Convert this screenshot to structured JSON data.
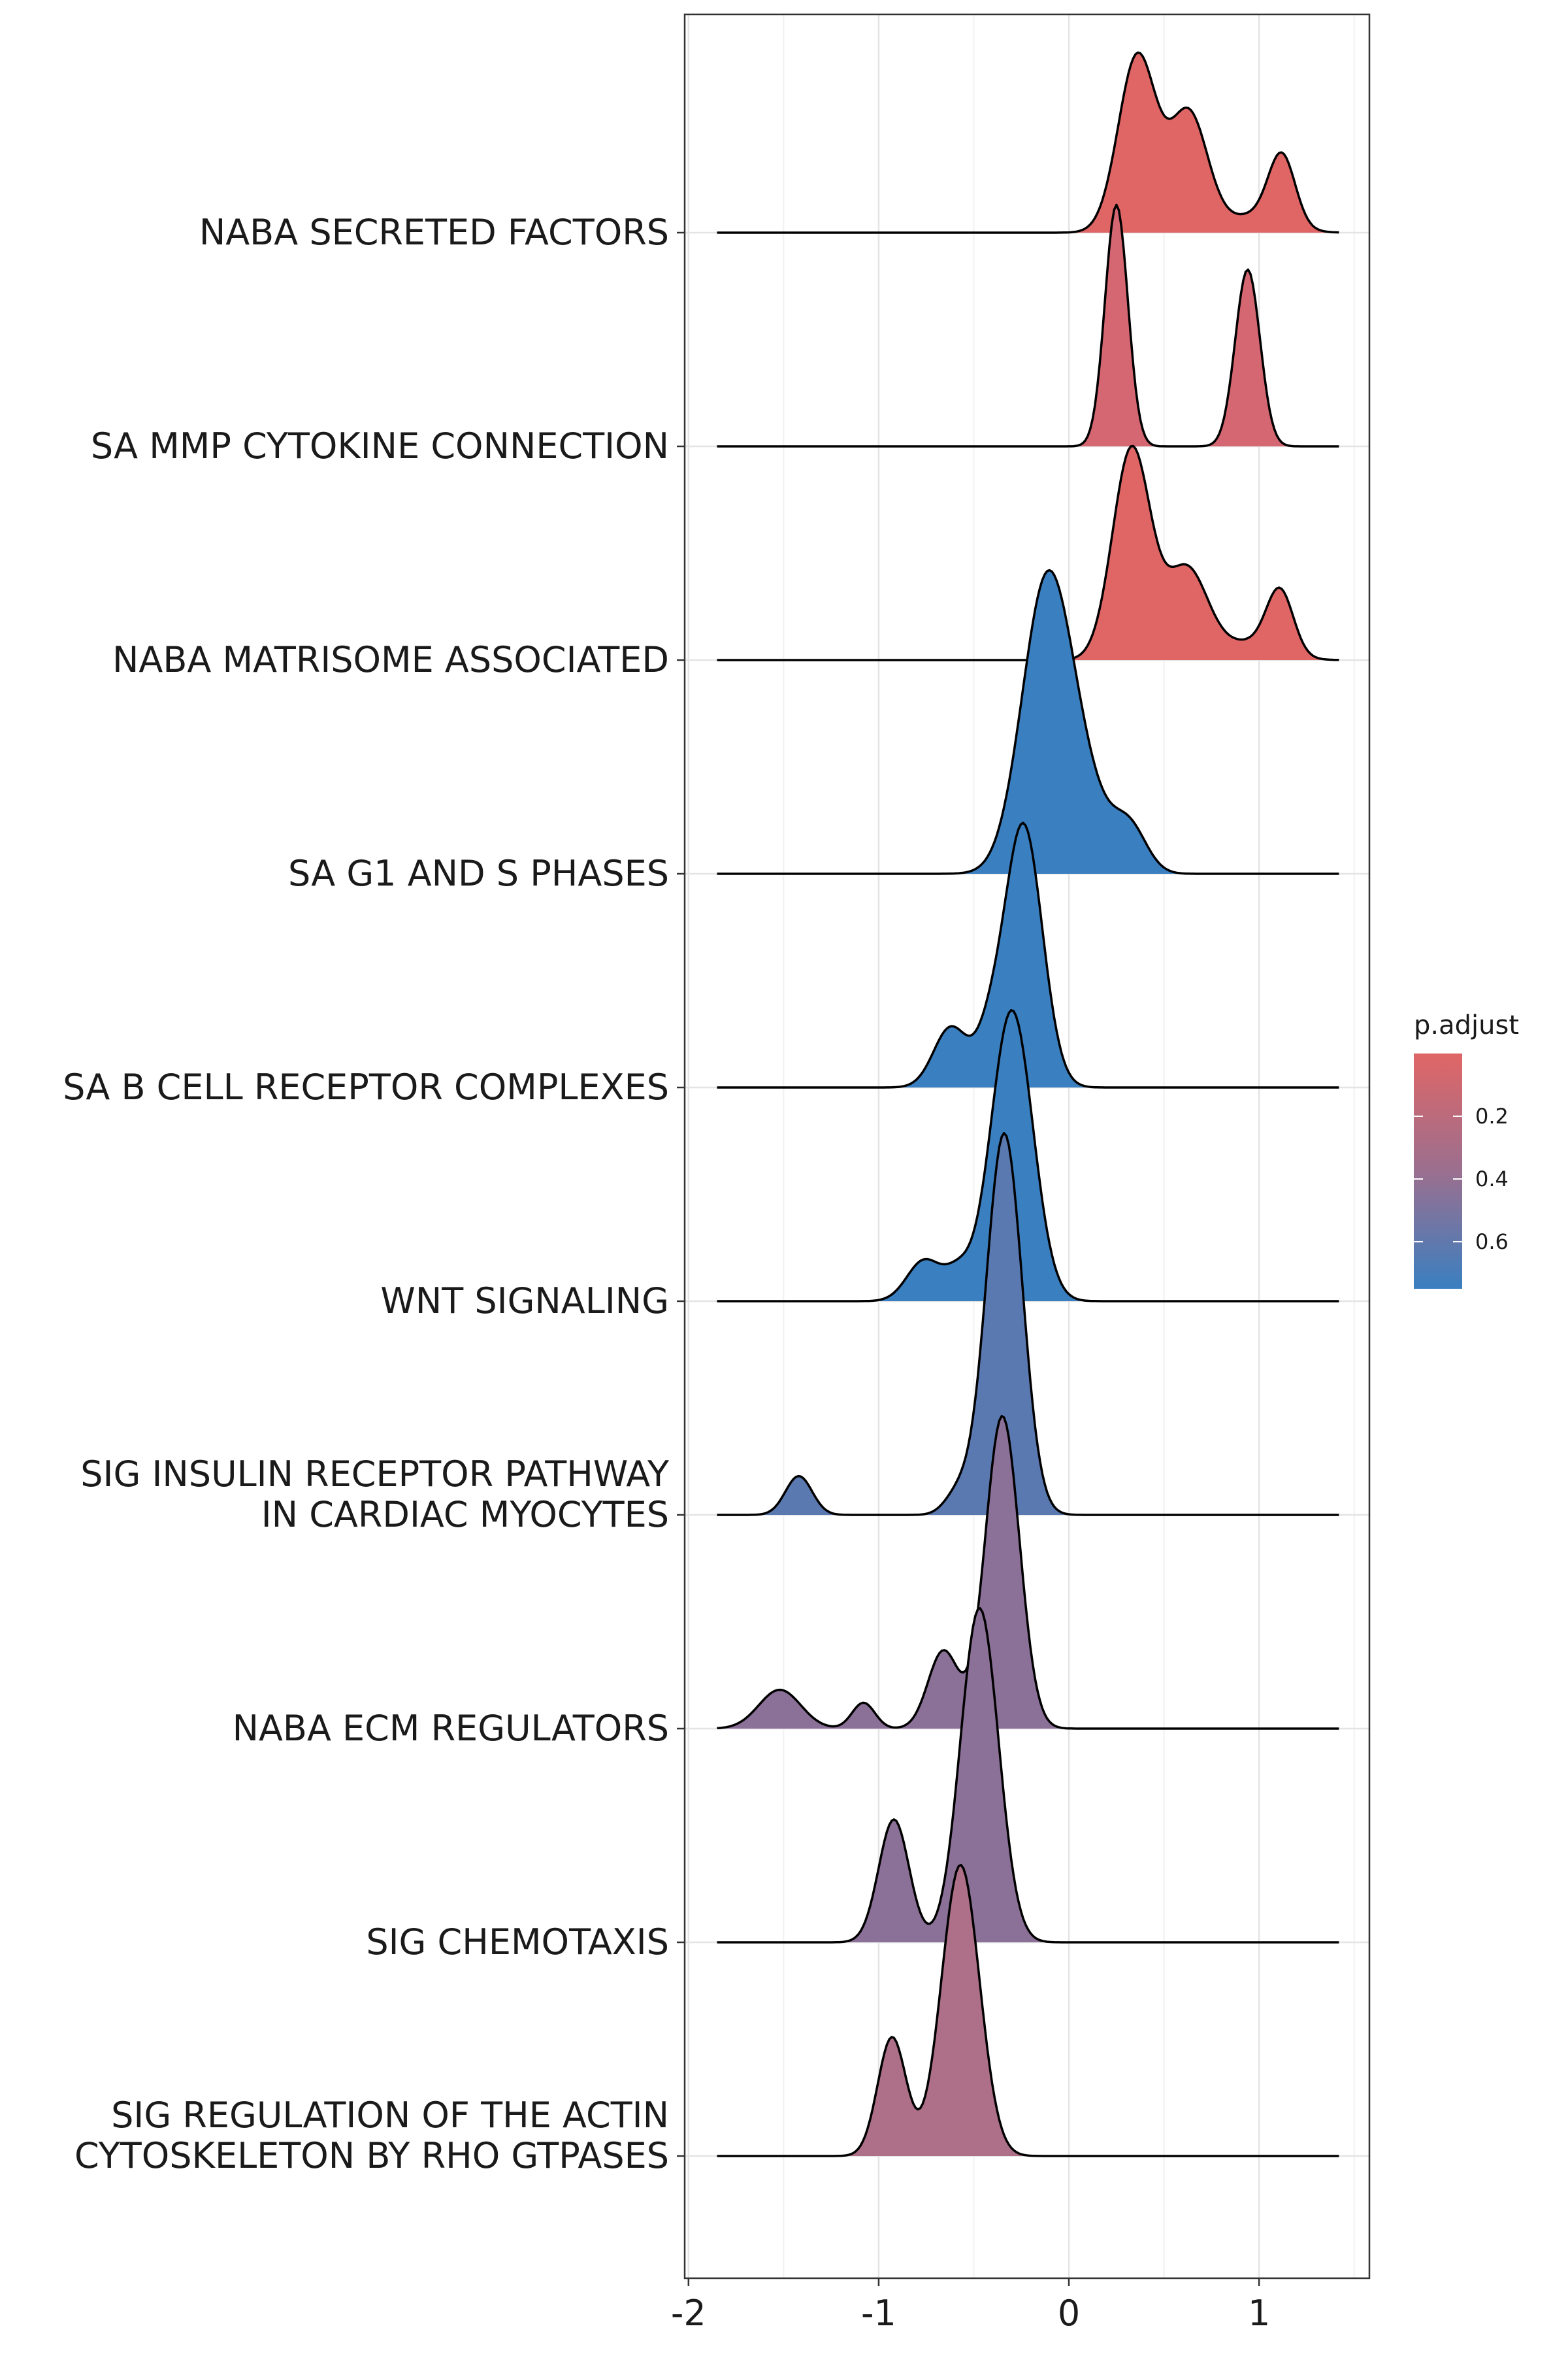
{
  "chart_data": {
    "type": "ridgeline",
    "xlim": [
      -2.02,
      1.58
    ],
    "x_ticks": [
      {
        "value": -2,
        "label": "-2"
      },
      {
        "value": -1,
        "label": "-1"
      },
      {
        "value": 0,
        "label": "0"
      },
      {
        "value": 1,
        "label": "1"
      }
    ],
    "xlabel": "",
    "ylabel": "",
    "grid": true,
    "density_range": [
      -1.85,
      1.42
    ],
    "ridge_height_per_unit": 1.0,
    "color_scale": {
      "title": "p.adjust",
      "low_value": 0.0,
      "high_value": 0.75,
      "low_color": "#e06666",
      "high_color": "#3a7fc0",
      "ticks": [
        {
          "value": 0.2,
          "label": "0.2"
        },
        {
          "value": 0.4,
          "label": "0.4"
        },
        {
          "value": 0.6,
          "label": "0.6"
        }
      ]
    },
    "series": [
      {
        "label_lines": [
          "NABA SECRETED FACTORS"
        ],
        "p_adjust": 0.03,
        "fill": "#e06666",
        "peaks": [
          [
            0.36,
            0.1,
            0.82
          ],
          [
            0.63,
            0.1,
            0.55
          ],
          [
            0.98,
            0.15,
            0.08
          ],
          [
            1.12,
            0.07,
            0.32
          ]
        ]
      },
      {
        "label_lines": [
          "SA MMP CYTOKINE CONNECTION"
        ],
        "p_adjust": 0.1,
        "fill": "#d56773",
        "peaks": [
          [
            0.25,
            0.06,
            1.12
          ],
          [
            0.94,
            0.065,
            0.82
          ]
        ]
      },
      {
        "label_lines": [
          "NABA MATRISOME ASSOCIATED"
        ],
        "p_adjust": 0.03,
        "fill": "#e06666",
        "peaks": [
          [
            0.33,
            0.1,
            0.98
          ],
          [
            0.62,
            0.11,
            0.42
          ],
          [
            0.95,
            0.15,
            0.08
          ],
          [
            1.11,
            0.07,
            0.29
          ]
        ]
      },
      {
        "label_lines": [
          "SA G1 AND S PHASES"
        ],
        "p_adjust": 0.75,
        "fill": "#3a7fc0",
        "peaks": [
          [
            -0.12,
            0.13,
            1.3
          ],
          [
            0.08,
            0.13,
            0.32
          ],
          [
            0.32,
            0.09,
            0.2
          ]
        ]
      },
      {
        "label_lines": [
          "SA B CELL RECEPTOR COMPLEXES"
        ],
        "p_adjust": 0.75,
        "fill": "#3a7fc0",
        "peaks": [
          [
            -0.24,
            0.1,
            1.22
          ],
          [
            -0.62,
            0.09,
            0.28
          ],
          [
            -0.42,
            0.07,
            0.18
          ]
        ]
      },
      {
        "label_lines": [
          "WNT SIGNALING"
        ],
        "p_adjust": 0.75,
        "fill": "#3a7fc0",
        "peaks": [
          [
            -0.3,
            0.11,
            1.35
          ],
          [
            -0.76,
            0.09,
            0.19
          ],
          [
            -0.58,
            0.07,
            0.12
          ]
        ]
      },
      {
        "label_lines": [
          "SIG INSULIN RECEPTOR PATHWAY",
          "IN CARDIAC MYOCYTES"
        ],
        "p_adjust": 0.62,
        "fill": "#5b79b1",
        "peaks": [
          [
            -0.34,
            0.095,
            1.77
          ],
          [
            -1.42,
            0.07,
            0.18
          ],
          [
            -0.58,
            0.07,
            0.1
          ]
        ]
      },
      {
        "label_lines": [
          "NABA ECM REGULATORS"
        ],
        "p_adjust": 0.45,
        "fill": "#8b7097",
        "peaks": [
          [
            -0.35,
            0.09,
            1.45
          ],
          [
            -1.52,
            0.11,
            0.18
          ],
          [
            -1.08,
            0.06,
            0.12
          ],
          [
            -0.66,
            0.08,
            0.36
          ]
        ]
      },
      {
        "label_lines": [
          "SIG CHEMOTAXIS"
        ],
        "p_adjust": 0.45,
        "fill": "#8b7097",
        "peaks": [
          [
            -0.47,
            0.1,
            1.55
          ],
          [
            -0.92,
            0.08,
            0.57
          ]
        ]
      },
      {
        "label_lines": [
          "SIG REGULATION OF THE ACTIN",
          "CYTOSKELETON BY RHO GTPASES"
        ],
        "p_adjust": 0.25,
        "fill": "#ad7088",
        "peaks": [
          [
            -0.57,
            0.1,
            1.35
          ],
          [
            -0.93,
            0.075,
            0.55
          ]
        ]
      }
    ]
  }
}
